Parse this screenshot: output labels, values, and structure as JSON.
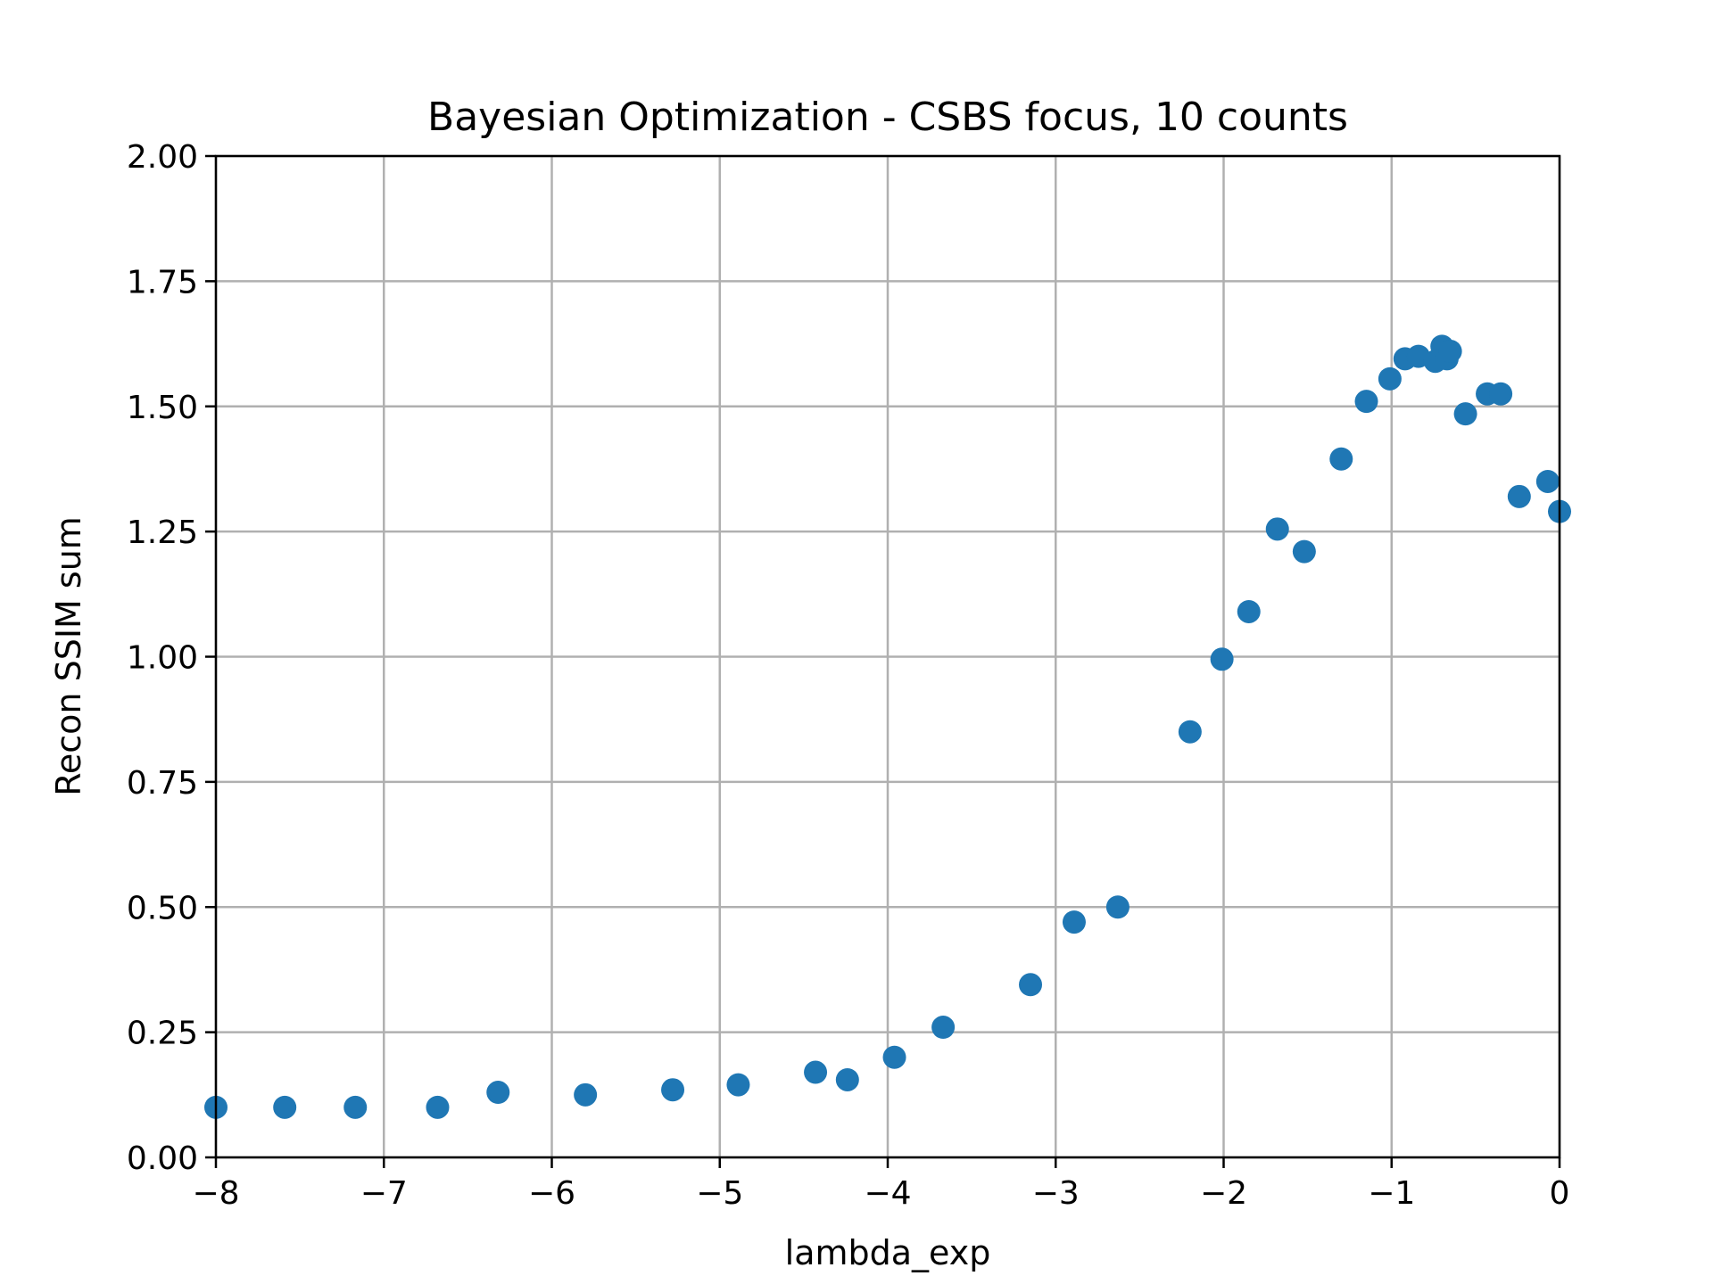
{
  "chart_data": {
    "type": "scatter",
    "title": "Bayesian Optimization - CSBS focus, 10 counts",
    "xlabel": "lambda_exp",
    "ylabel": "Recon SSIM sum",
    "xlim": [
      -8,
      0
    ],
    "ylim": [
      0,
      2
    ],
    "xticks": [
      -8,
      -7,
      -6,
      -5,
      -4,
      -3,
      -2,
      -1,
      0
    ],
    "xtick_labels": [
      "−8",
      "−7",
      "−6",
      "−5",
      "−4",
      "−3",
      "−2",
      "−1",
      "0"
    ],
    "yticks": [
      0,
      0.25,
      0.5,
      0.75,
      1.0,
      1.25,
      1.5,
      1.75,
      2.0
    ],
    "ytick_labels": [
      "0.00",
      "0.25",
      "0.50",
      "0.75",
      "1.00",
      "1.25",
      "1.50",
      "1.75",
      "2.00"
    ],
    "grid": true,
    "color": "#1f77b4",
    "series": [
      {
        "x": [
          -8.0,
          -7.59,
          -7.17,
          -6.68,
          -6.32,
          -5.8,
          -5.28,
          -4.89,
          -4.43,
          -4.24,
          -3.96,
          -3.67,
          -3.15,
          -2.89,
          -2.63,
          -2.2,
          -2.01,
          -1.85,
          -1.68,
          -1.52,
          -1.3,
          -1.15,
          -1.01,
          -0.92,
          -0.84,
          -0.74,
          -0.7,
          -0.67,
          -0.65,
          -0.56,
          -0.43,
          -0.35,
          -0.24,
          -0.07,
          0.0
        ],
        "y": [
          0.1,
          0.1,
          0.1,
          0.1,
          0.13,
          0.125,
          0.135,
          0.145,
          0.17,
          0.155,
          0.2,
          0.26,
          0.345,
          0.47,
          0.5,
          0.85,
          0.995,
          1.09,
          1.255,
          1.21,
          1.395,
          1.51,
          1.555,
          1.595,
          1.6,
          1.59,
          1.62,
          1.595,
          1.61,
          1.485,
          1.525,
          1.525,
          1.32,
          1.35,
          1.29
        ]
      }
    ]
  }
}
